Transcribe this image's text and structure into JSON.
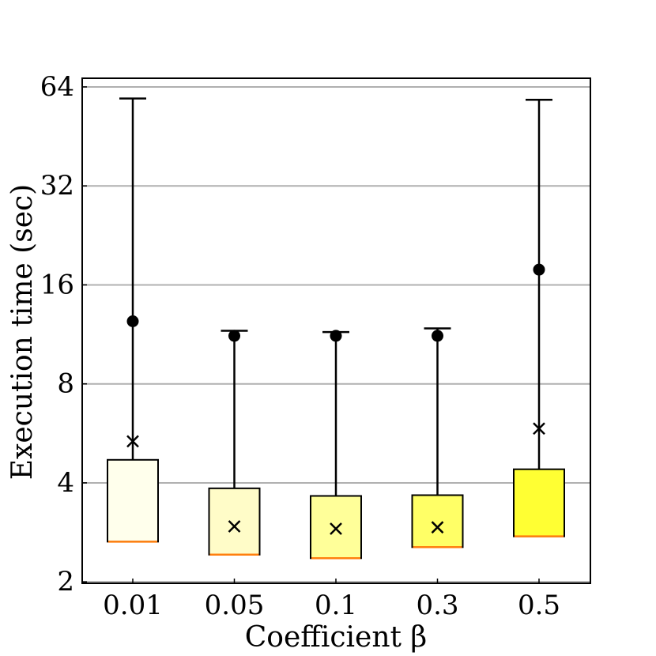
{
  "chart_data": {
    "type": "box",
    "title": "",
    "xlabel": "Coefficient β",
    "ylabel": "Execution time (sec)",
    "yscale": "log2",
    "ylim": [
      1.98,
      68
    ],
    "yticks": [
      2,
      4,
      8,
      16,
      32,
      64
    ],
    "ytick_labels": [
      "2",
      "4",
      "8",
      "16",
      "32",
      "64"
    ],
    "grid": "horizontal",
    "categories": [
      "0.01",
      "0.05",
      "0.1",
      "0.3",
      "0.5"
    ],
    "boxes": [
      {
        "label": "0.01",
        "q1": 2.65,
        "median": 2.65,
        "q3": 4.7,
        "whisker_low": 2.65,
        "whisker_high": 59,
        "mean": 5.35,
        "max_point": 12.4,
        "fill": "#ffffec"
      },
      {
        "label": "0.05",
        "q1": 2.42,
        "median": 2.42,
        "q3": 3.85,
        "whisker_low": 2.42,
        "whisker_high": 11.6,
        "mean": 2.95,
        "max_point": 11.2,
        "fill": "#fffcc8"
      },
      {
        "label": "0.1",
        "q1": 2.36,
        "median": 2.36,
        "q3": 3.65,
        "whisker_low": 2.36,
        "whisker_high": 11.5,
        "mean": 2.9,
        "max_point": 11.2,
        "fill": "#ffff99"
      },
      {
        "label": "0.3",
        "q1": 2.55,
        "median": 2.55,
        "q3": 3.67,
        "whisker_low": 2.55,
        "whisker_high": 11.8,
        "mean": 2.93,
        "max_point": 11.2,
        "fill": "#ffff66"
      },
      {
        "label": "0.5",
        "q1": 2.75,
        "median": 2.75,
        "q3": 4.4,
        "whisker_low": 2.75,
        "whisker_high": 58.5,
        "mean": 5.85,
        "max_point": 17.8,
        "fill": "#ffff33"
      }
    ],
    "colors": {
      "median": "#ff7f0e",
      "grid": "#b0b0b0",
      "line": "#000000"
    }
  }
}
